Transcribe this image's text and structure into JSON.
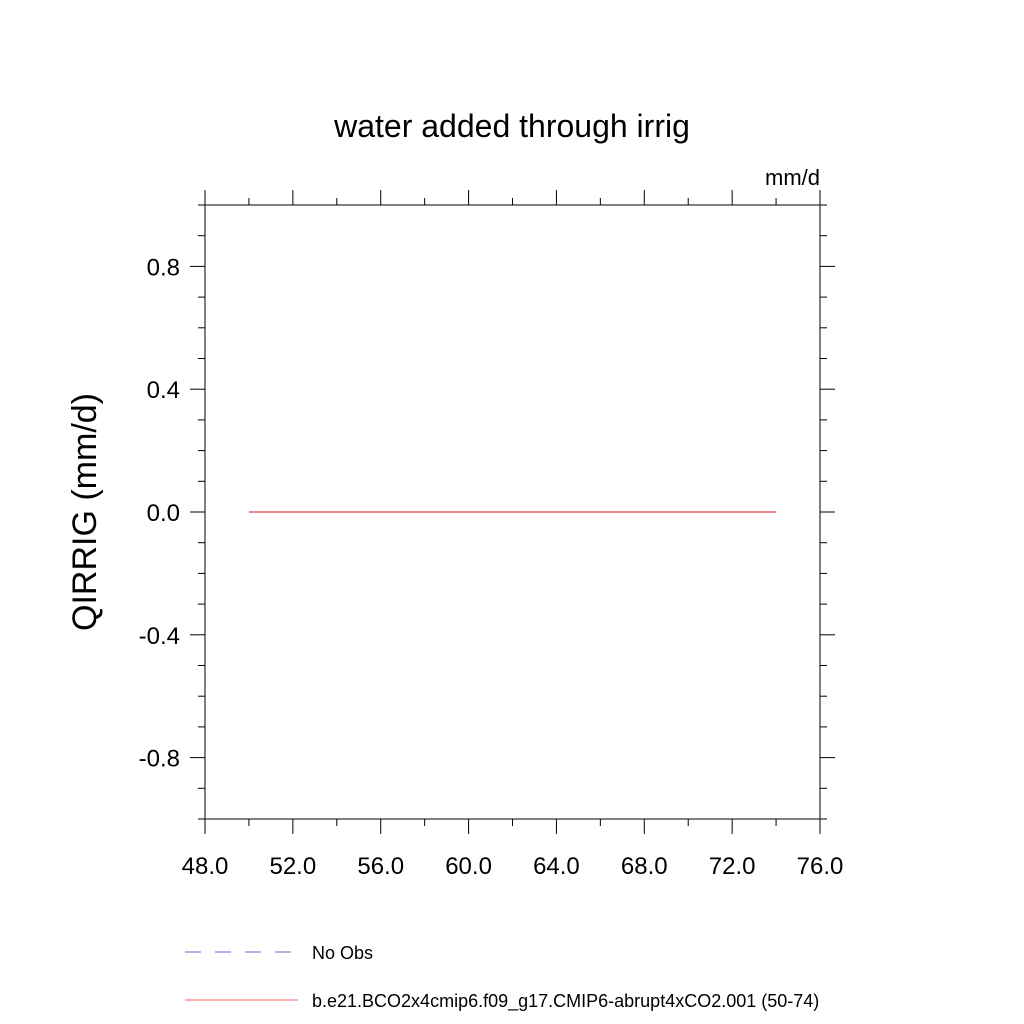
{
  "chart_data": {
    "type": "line",
    "title": "water added through irrig",
    "units_label": "mm/d",
    "ylabel": "QIRRIG  (mm/d)",
    "xlabel": "",
    "xlim": [
      48.0,
      76.0
    ],
    "ylim": [
      -1.0,
      1.0
    ],
    "x_ticks": [
      "48.0",
      "52.0",
      "56.0",
      "60.0",
      "64.0",
      "68.0",
      "72.0",
      "76.0"
    ],
    "y_ticks": [
      "0.8",
      "0.4",
      "0.0",
      "-0.4",
      "-0.8"
    ],
    "grid": false,
    "legend_position": "bottom-left",
    "series": [
      {
        "name": "No Obs",
        "color": "#6a6ad6",
        "style": "dashed",
        "x": [],
        "y": []
      },
      {
        "name": "b.e21.BCO2x4cmip6.f09_g17.CMIP6-abrupt4xCO2.001 (50-74)",
        "color": "#f06060",
        "style": "solid",
        "x": [
          50,
          74
        ],
        "y": [
          0.0,
          0.0
        ]
      }
    ]
  }
}
